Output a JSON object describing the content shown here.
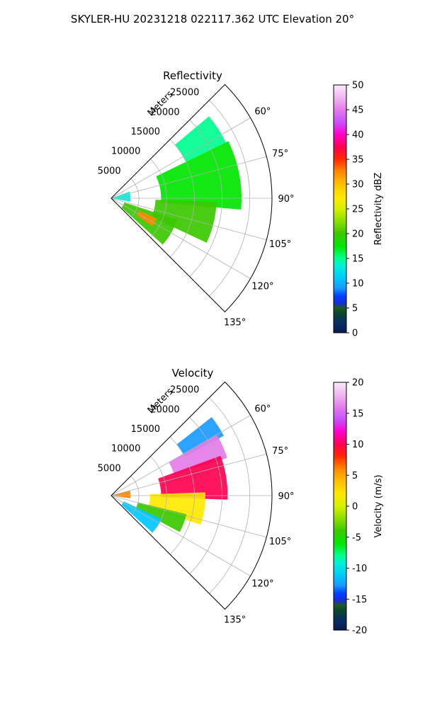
{
  "figure": {
    "suptitle": "SKYLER-HU  20231218  022117.362 UTC Elevation 20°"
  },
  "colors": {
    "grid": "#b0b0b0",
    "axis": "#000000"
  },
  "chart_data": [
    {
      "type": "ppi-polar-sector",
      "title": "Reflectivity",
      "radial_label": "Meters",
      "range_ticks": [
        "5000",
        "10000",
        "15000",
        "20000",
        "25000"
      ],
      "range_values": [
        5000,
        10000,
        15000,
        20000,
        25000
      ],
      "range_max": 29000,
      "azimuth_limits_deg": [
        45,
        135
      ],
      "azimuth_ticks": [
        "60°",
        "75°",
        "90°",
        "105°",
        "120°",
        "135°"
      ],
      "azimuth_values": [
        60,
        75,
        90,
        105,
        120,
        135
      ],
      "colorbar": {
        "label": "Reflectivity dBZ",
        "min": 0,
        "max": 50,
        "tick_labels": [
          "0",
          "5",
          "10",
          "15",
          "20",
          "25",
          "30",
          "35",
          "40",
          "45",
          "50"
        ],
        "tick_values": [
          0,
          5,
          10,
          15,
          20,
          25,
          30,
          35,
          40,
          45,
          50
        ],
        "stops": [
          [
            0.0,
            "#0b1a55"
          ],
          [
            0.04,
            "#0a2c62"
          ],
          [
            0.08,
            "#0b4630"
          ],
          [
            0.1,
            "#1f5a20"
          ],
          [
            0.12,
            "#1a2bd8"
          ],
          [
            0.15,
            "#0043ff"
          ],
          [
            0.18,
            "#1a9bff"
          ],
          [
            0.22,
            "#00c8ff"
          ],
          [
            0.27,
            "#00f0d8"
          ],
          [
            0.3,
            "#00ff90"
          ],
          [
            0.35,
            "#00e600"
          ],
          [
            0.4,
            "#3cc800"
          ],
          [
            0.45,
            "#8ae000"
          ],
          [
            0.5,
            "#d8f000"
          ],
          [
            0.55,
            "#ffe800"
          ],
          [
            0.6,
            "#ffc000"
          ],
          [
            0.65,
            "#ff8800"
          ],
          [
            0.7,
            "#ff2a00"
          ],
          [
            0.75,
            "#ff0050"
          ],
          [
            0.8,
            "#ff00c8"
          ],
          [
            0.85,
            "#c850ff"
          ],
          [
            0.9,
            "#e47ce8"
          ],
          [
            0.95,
            "#f0b8f0"
          ],
          [
            1.0,
            "#fbe8fb"
          ]
        ]
      },
      "echo_regions": [
        {
          "az": [
            50,
            64
          ],
          "r": [
            15000,
            23000
          ],
          "value": 16
        },
        {
          "az": [
            64,
            95
          ],
          "r": [
            9000,
            23500
          ],
          "value": 18
        },
        {
          "az": [
            92,
            115
          ],
          "r": [
            8000,
            19000
          ],
          "value": 20
        },
        {
          "az": [
            108,
            132
          ],
          "r": [
            2500,
            12500
          ],
          "value": 22
        },
        {
          "az": [
            114,
            124
          ],
          "r": [
            5500,
            9000
          ],
          "value": 34
        },
        {
          "az": [
            70,
            100
          ],
          "r": [
            500,
            3500
          ],
          "value": 14
        }
      ]
    },
    {
      "type": "ppi-polar-sector",
      "title": "Velocity",
      "radial_label": "Meters",
      "range_ticks": [
        "5000",
        "10000",
        "15000",
        "20000",
        "25000"
      ],
      "range_values": [
        5000,
        10000,
        15000,
        20000,
        25000
      ],
      "range_max": 29000,
      "azimuth_limits_deg": [
        45,
        135
      ],
      "azimuth_ticks": [
        "60°",
        "75°",
        "90°",
        "105°",
        "120°",
        "135°"
      ],
      "azimuth_values": [
        60,
        75,
        90,
        105,
        120,
        135
      ],
      "colorbar": {
        "label": "Velocity (m/s)",
        "min": -20,
        "max": 20,
        "tick_labels": [
          "-20",
          "-15",
          "-10",
          "-5",
          "0",
          "5",
          "10",
          "15",
          "20"
        ],
        "tick_values": [
          -20,
          -15,
          -10,
          -5,
          0,
          5,
          10,
          15,
          20
        ],
        "stops": [
          [
            0.0,
            "#0b1a55"
          ],
          [
            0.04,
            "#0a2c62"
          ],
          [
            0.08,
            "#0b4630"
          ],
          [
            0.1,
            "#1f5a20"
          ],
          [
            0.12,
            "#1a2bd8"
          ],
          [
            0.15,
            "#0043ff"
          ],
          [
            0.18,
            "#1a9bff"
          ],
          [
            0.22,
            "#00c8ff"
          ],
          [
            0.27,
            "#00f0d8"
          ],
          [
            0.3,
            "#00ff90"
          ],
          [
            0.35,
            "#00e600"
          ],
          [
            0.4,
            "#3cc800"
          ],
          [
            0.45,
            "#8ae000"
          ],
          [
            0.5,
            "#d8f000"
          ],
          [
            0.55,
            "#ffe800"
          ],
          [
            0.6,
            "#ffc000"
          ],
          [
            0.65,
            "#ff8800"
          ],
          [
            0.7,
            "#ff2a00"
          ],
          [
            0.75,
            "#ff0050"
          ],
          [
            0.8,
            "#ff00c8"
          ],
          [
            0.85,
            "#c850ff"
          ],
          [
            0.9,
            "#e47ce8"
          ],
          [
            0.95,
            "#f0b8f0"
          ],
          [
            1.0,
            "#fbe8fb"
          ]
        ]
      },
      "echo_regions": [
        {
          "az": [
            52,
            62
          ],
          "r": [
            15000,
            23000
          ],
          "value": -12
        },
        {
          "az": [
            60,
            72
          ],
          "r": [
            12000,
            22000
          ],
          "value": 16
        },
        {
          "az": [
            70,
            92
          ],
          "r": [
            9000,
            21000
          ],
          "value": 10
        },
        {
          "az": [
            88,
            108
          ],
          "r": [
            7000,
            17000
          ],
          "value": 2
        },
        {
          "az": [
            104,
            118
          ],
          "r": [
            5000,
            14000
          ],
          "value": -4
        },
        {
          "az": [
            115,
            132
          ],
          "r": [
            2500,
            10000
          ],
          "value": -10
        },
        {
          "az": [
            75,
            98
          ],
          "r": [
            500,
            3500
          ],
          "value": 6
        }
      ]
    }
  ]
}
